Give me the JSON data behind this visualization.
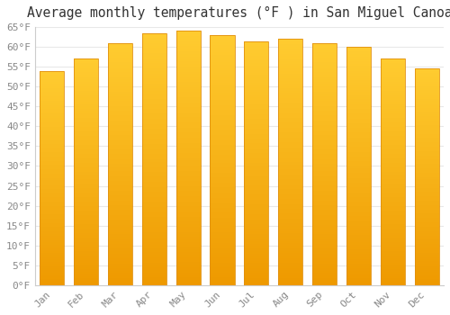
{
  "title": "Average monthly temperatures (°F ) in San Miguel Canoa",
  "months": [
    "Jan",
    "Feb",
    "Mar",
    "Apr",
    "May",
    "Jun",
    "Jul",
    "Aug",
    "Sep",
    "Oct",
    "Nov",
    "Dec"
  ],
  "values": [
    54.0,
    57.0,
    61.0,
    63.5,
    64.0,
    63.0,
    61.5,
    62.0,
    61.0,
    60.0,
    57.0,
    54.5
  ],
  "bar_color_bottom": "#F0A010",
  "bar_color_top": "#FFD060",
  "bar_edge_color": "#E09010",
  "background_color": "#FFFFFF",
  "plot_bg_color": "#FFFFFF",
  "grid_color": "#E8E8E8",
  "ylim": [
    0,
    65
  ],
  "ytick_max": 65,
  "ytick_step": 5,
  "title_fontsize": 10.5,
  "tick_fontsize": 8,
  "tick_color": "#888888",
  "bar_width": 0.72,
  "title_color": "#333333"
}
